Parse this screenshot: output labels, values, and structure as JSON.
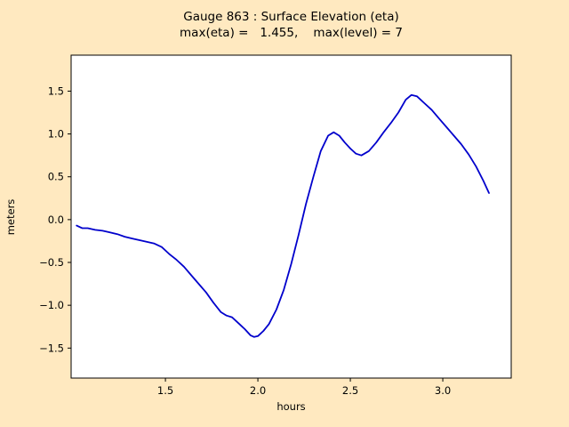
{
  "figure": {
    "background_color": "#ffe9c0",
    "axes_background": "#ffffff",
    "spine_color": "#000000"
  },
  "chart_data": {
    "type": "line",
    "title": "Gauge 863 : Surface Elevation (eta)",
    "subtitle": "max(eta) =   1.455,    max(level) = 7",
    "xlabel": "hours",
    "ylabel": "meters",
    "xlim": [
      0.99,
      3.37
    ],
    "ylim": [
      -1.85,
      1.92
    ],
    "xticks": [
      1.5,
      2.0,
      2.5,
      3.0
    ],
    "yticks": [
      -1.5,
      -1.0,
      -0.5,
      0.0,
      0.5,
      1.0,
      1.5
    ],
    "grid": false,
    "legend": "none",
    "max_eta": 1.455,
    "max_level": 7,
    "series": [
      {
        "name": "surface-elevation-eta",
        "color": "#0000cc",
        "x": [
          1.02,
          1.05,
          1.08,
          1.12,
          1.16,
          1.2,
          1.24,
          1.28,
          1.32,
          1.36,
          1.4,
          1.44,
          1.48,
          1.52,
          1.56,
          1.6,
          1.64,
          1.68,
          1.72,
          1.76,
          1.8,
          1.83,
          1.86,
          1.9,
          1.93,
          1.96,
          1.98,
          2.0,
          2.03,
          2.06,
          2.1,
          2.14,
          2.18,
          2.22,
          2.26,
          2.3,
          2.34,
          2.38,
          2.41,
          2.44,
          2.47,
          2.5,
          2.53,
          2.56,
          2.6,
          2.64,
          2.68,
          2.72,
          2.76,
          2.8,
          2.83,
          2.86,
          2.9,
          2.94,
          2.98,
          3.02,
          3.06,
          3.1,
          3.14,
          3.18,
          3.22,
          3.25
        ],
        "y": [
          -0.07,
          -0.1,
          -0.1,
          -0.12,
          -0.13,
          -0.15,
          -0.17,
          -0.2,
          -0.22,
          -0.24,
          -0.26,
          -0.28,
          -0.32,
          -0.4,
          -0.47,
          -0.55,
          -0.65,
          -0.75,
          -0.85,
          -0.97,
          -1.08,
          -1.12,
          -1.14,
          -1.22,
          -1.28,
          -1.35,
          -1.37,
          -1.36,
          -1.3,
          -1.22,
          -1.05,
          -0.82,
          -0.52,
          -0.18,
          0.18,
          0.5,
          0.8,
          0.98,
          1.02,
          0.98,
          0.9,
          0.83,
          0.77,
          0.75,
          0.8,
          0.9,
          1.02,
          1.13,
          1.25,
          1.4,
          1.455,
          1.44,
          1.36,
          1.28,
          1.18,
          1.08,
          0.98,
          0.88,
          0.76,
          0.62,
          0.45,
          0.31
        ]
      }
    ]
  }
}
